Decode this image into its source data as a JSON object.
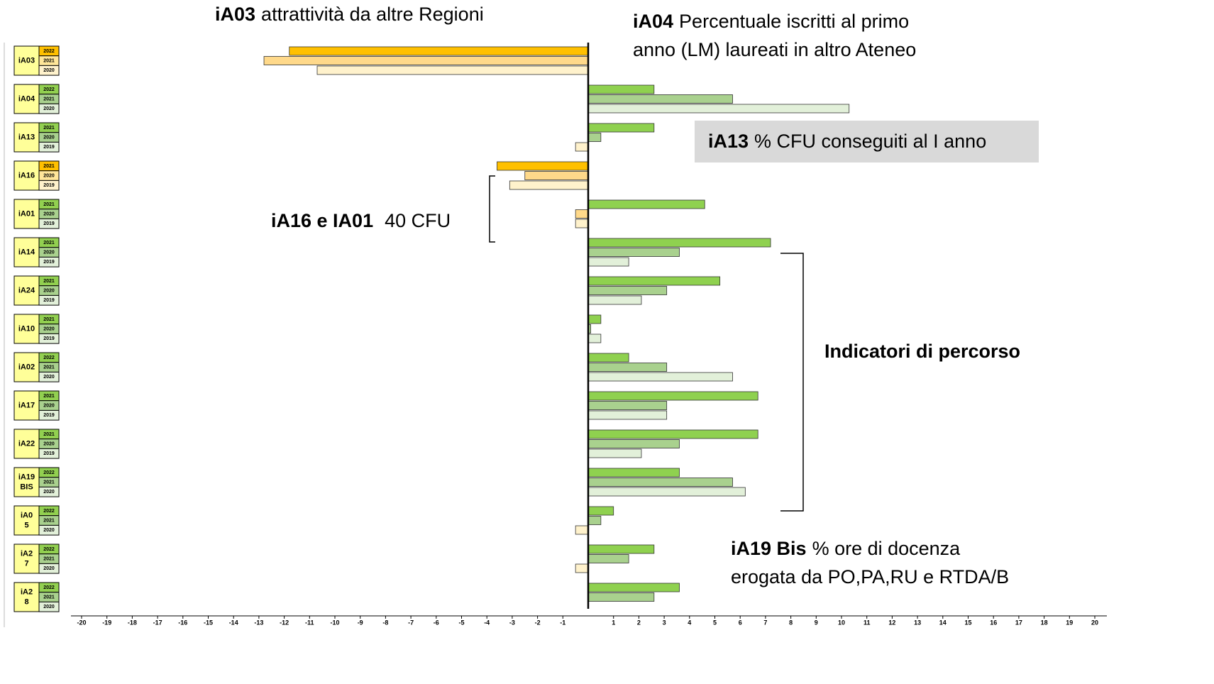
{
  "chart_data": {
    "type": "bar",
    "orientation": "horizontal",
    "xlim": [
      -20,
      20
    ],
    "xticks": [
      -20,
      -19,
      -18,
      -17,
      -16,
      -15,
      -14,
      -13,
      -12,
      -11,
      -10,
      -9,
      -8,
      -7,
      -6,
      -5,
      -4,
      -3,
      -2,
      -1,
      1,
      2,
      3,
      4,
      5,
      6,
      7,
      8,
      9,
      10,
      11,
      12,
      13,
      14,
      15,
      16,
      17,
      18,
      19,
      20
    ],
    "positive_colors": [
      "#8fd14f",
      "#a9d18e",
      "#e2f0d9"
    ],
    "negative_colors": [
      "#ffc000",
      "#ffd98a",
      "#fff2cc"
    ],
    "groups": [
      {
        "label": [
          "iA03"
        ],
        "years": [
          "2022",
          "2021",
          "2020"
        ],
        "values": [
          -11.8,
          -12.8,
          -10.7
        ],
        "cell_colors": [
          "#ffc000",
          "#ffe699",
          "#fff2cc"
        ]
      },
      {
        "label": [
          "iA04"
        ],
        "years": [
          "2022",
          "2021",
          "2020"
        ],
        "values": [
          2.6,
          5.7,
          10.3
        ],
        "cell_colors": [
          "#92d050",
          "#a9d18e",
          "#e2f0d9"
        ]
      },
      {
        "label": [
          "iA13"
        ],
        "years": [
          "2021",
          "2020",
          "2019"
        ],
        "values": [
          2.6,
          0.5,
          -0.5
        ],
        "cell_colors": [
          "#92d050",
          "#a9d18e",
          "#e2f0d9"
        ]
      },
      {
        "label": [
          "iA16"
        ],
        "years": [
          "2021",
          "2020",
          "2019"
        ],
        "values": [
          -3.6,
          -2.5,
          -3.1
        ],
        "cell_colors": [
          "#ffc000",
          "#ffe699",
          "#fff2cc"
        ]
      },
      {
        "label": [
          "iA01"
        ],
        "years": [
          "2021",
          "2020",
          "2019"
        ],
        "values": [
          4.6,
          -0.5,
          -0.5
        ],
        "cell_colors": [
          "#92d050",
          "#a9d18e",
          "#e2f0d9"
        ]
      },
      {
        "label": [
          "iA14"
        ],
        "years": [
          "2021",
          "2020",
          "2019"
        ],
        "values": [
          7.2,
          3.6,
          1.6
        ],
        "cell_colors": [
          "#92d050",
          "#a9d18e",
          "#e2f0d9"
        ]
      },
      {
        "label": [
          "iA24"
        ],
        "years": [
          "2021",
          "2020",
          "2019"
        ],
        "values": [
          5.2,
          3.1,
          2.1
        ],
        "cell_colors": [
          "#92d050",
          "#a9d18e",
          "#e2f0d9"
        ]
      },
      {
        "label": [
          "iA10"
        ],
        "years": [
          "2021",
          "2020",
          "2019"
        ],
        "values": [
          0.5,
          0.1,
          0.5
        ],
        "cell_colors": [
          "#92d050",
          "#a9d18e",
          "#e2f0d9"
        ]
      },
      {
        "label": [
          "iA02"
        ],
        "years": [
          "2022",
          "2021",
          "2020"
        ],
        "values": [
          1.6,
          3.1,
          5.7
        ],
        "cell_colors": [
          "#92d050",
          "#a9d18e",
          "#e2f0d9"
        ]
      },
      {
        "label": [
          "iA17"
        ],
        "years": [
          "2021",
          "2020",
          "2019"
        ],
        "values": [
          6.7,
          3.1,
          3.1
        ],
        "cell_colors": [
          "#92d050",
          "#a9d18e",
          "#e2f0d9"
        ]
      },
      {
        "label": [
          "iA22"
        ],
        "years": [
          "2021",
          "2020",
          "2019"
        ],
        "values": [
          6.7,
          3.6,
          2.1
        ],
        "cell_colors": [
          "#92d050",
          "#a9d18e",
          "#e2f0d9"
        ]
      },
      {
        "label": [
          "iA19",
          "BIS"
        ],
        "years": [
          "2022",
          "2021",
          "2020"
        ],
        "values": [
          3.6,
          5.7,
          6.2
        ],
        "cell_colors": [
          "#92d050",
          "#a9d18e",
          "#e2f0d9"
        ]
      },
      {
        "label": [
          "iA0",
          "5"
        ],
        "years": [
          "2022",
          "2021",
          "2020"
        ],
        "values": [
          1.0,
          0.5,
          -0.5
        ],
        "cell_colors": [
          "#92d050",
          "#a9d18e",
          "#e2f0d9"
        ]
      },
      {
        "label": [
          "iA2",
          "7"
        ],
        "years": [
          "2022",
          "2021",
          "2020"
        ],
        "values": [
          2.6,
          1.6,
          -0.5
        ],
        "cell_colors": [
          "#92d050",
          "#a9d18e",
          "#e2f0d9"
        ]
      },
      {
        "label": [
          "iA2",
          "8"
        ],
        "years": [
          "2022",
          "2021",
          "2020"
        ],
        "values": [
          3.6,
          2.6,
          null
        ],
        "cell_colors": [
          "#92d050",
          "#a9d18e",
          "#e2f0d9"
        ]
      }
    ],
    "annotations": [
      {
        "bold": "iA03",
        "lines": [
          "attrattività da altre Regioni"
        ]
      },
      {
        "bold": "iA04",
        "lines": [
          "Percentuale iscritti al primo",
          "anno (LM) laureati in altro Ateneo"
        ]
      },
      {
        "bold": "iA13",
        "lines": [
          "% CFU conseguiti al I anno"
        ]
      },
      {
        "bold": "iA16 e IA01",
        "lines": [
          "40 CFU"
        ]
      },
      {
        "bold": "Indicatori di percorso",
        "lines": []
      },
      {
        "bold": "iA19 Bis",
        "lines": [
          "% ore di docenza",
          "erogata da PO,PA,RU e RTDA/B"
        ]
      }
    ]
  }
}
